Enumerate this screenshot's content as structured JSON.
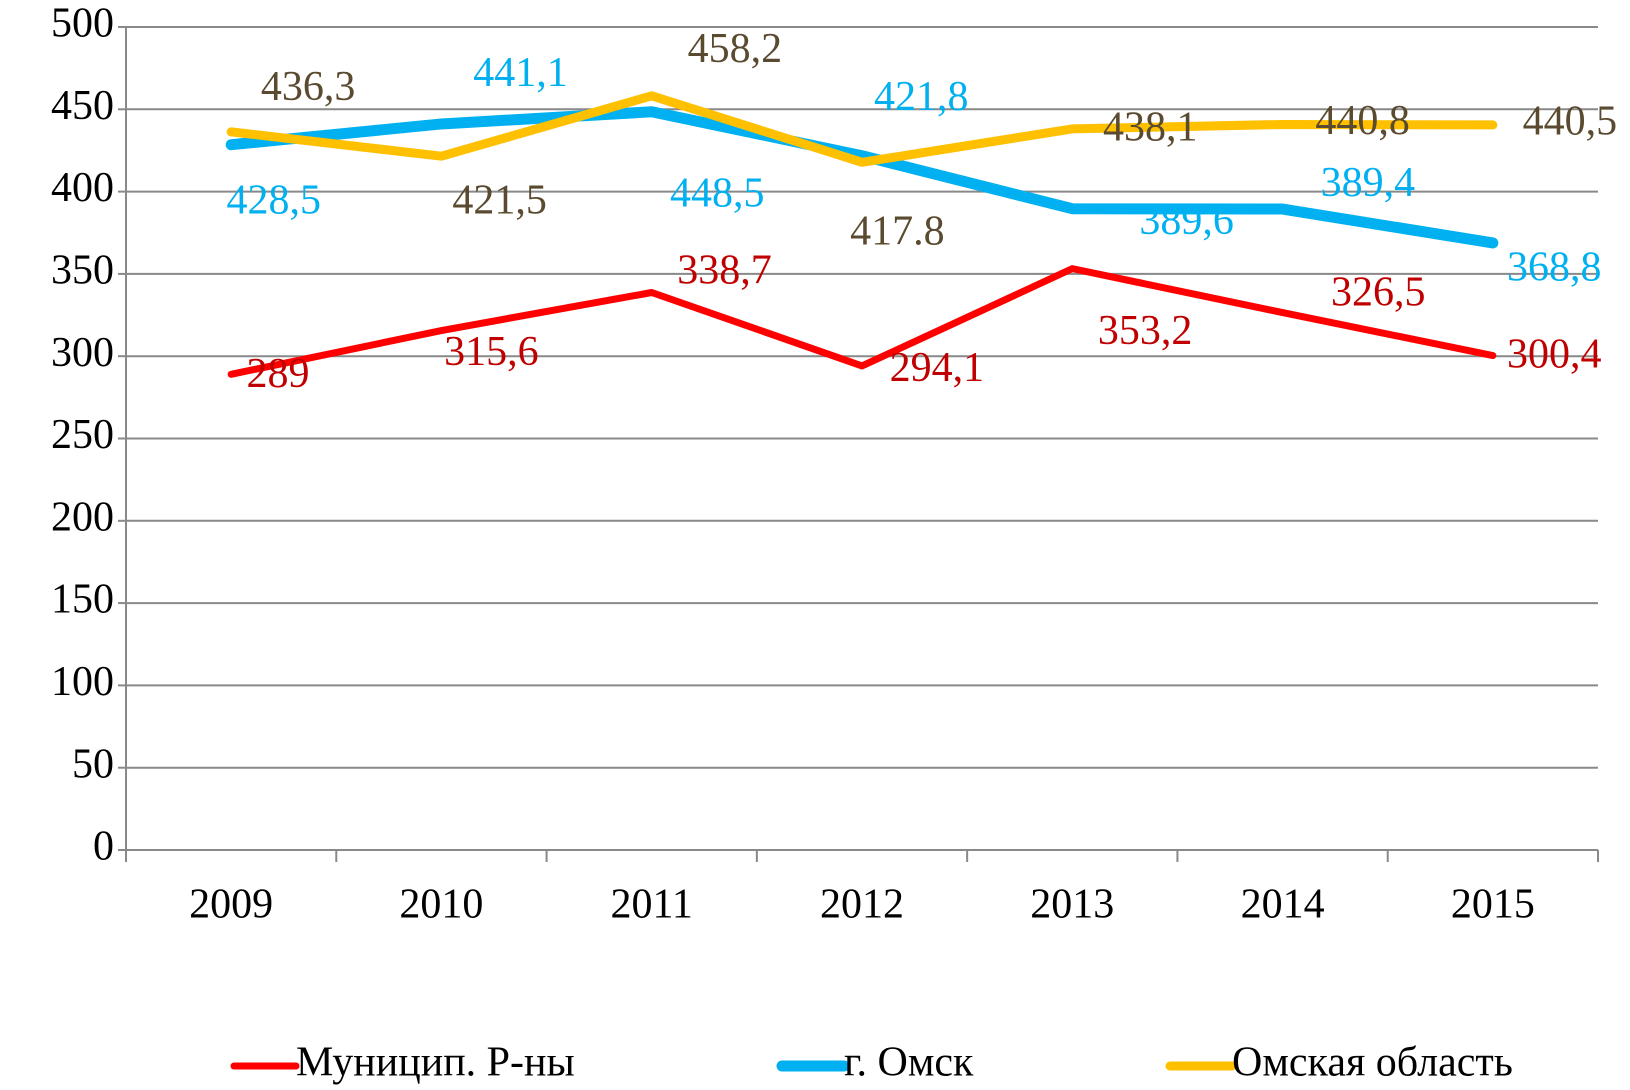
{
  "chart_data": {
    "type": "line",
    "categories": [
      "2009",
      "2010",
      "2011",
      "2012",
      "2013",
      "2014",
      "2015"
    ],
    "series": [
      {
        "name": "Муницип. Р-ны",
        "color": "#ff0000",
        "label_color": "#c00000",
        "values": [
          289,
          315.6,
          338.7,
          294.1,
          353.2,
          326.5,
          300.4
        ],
        "value_labels": [
          "289",
          "315,6",
          "338,7",
          "294,1",
          "353,2",
          "326,5",
          "300,4"
        ]
      },
      {
        "name": "г. Омск",
        "color": "#00b0f0",
        "label_color": "#00b0f0",
        "values": [
          428.5,
          441.1,
          448.5,
          421.8,
          389.6,
          389.4,
          368.8
        ],
        "value_labels": [
          "428,5",
          "441,1",
          "448,5",
          "421,8",
          "389,6",
          "389,4",
          "368,8"
        ]
      },
      {
        "name": "Омская область",
        "color": "#ffc000",
        "label_color": "#5a4a2f",
        "values": [
          436.3,
          421.5,
          458.2,
          417.8,
          438.1,
          440.8,
          440.5
        ],
        "value_labels": [
          "436,3",
          "421,5",
          "458,2",
          "417.8",
          "438,1",
          "440,8",
          "440,5"
        ]
      }
    ],
    "ylim": [
      0,
      500
    ],
    "yticks": [
      0,
      50,
      100,
      150,
      200,
      250,
      300,
      350,
      400,
      450,
      500
    ],
    "grid": true,
    "legend": "bottom"
  }
}
